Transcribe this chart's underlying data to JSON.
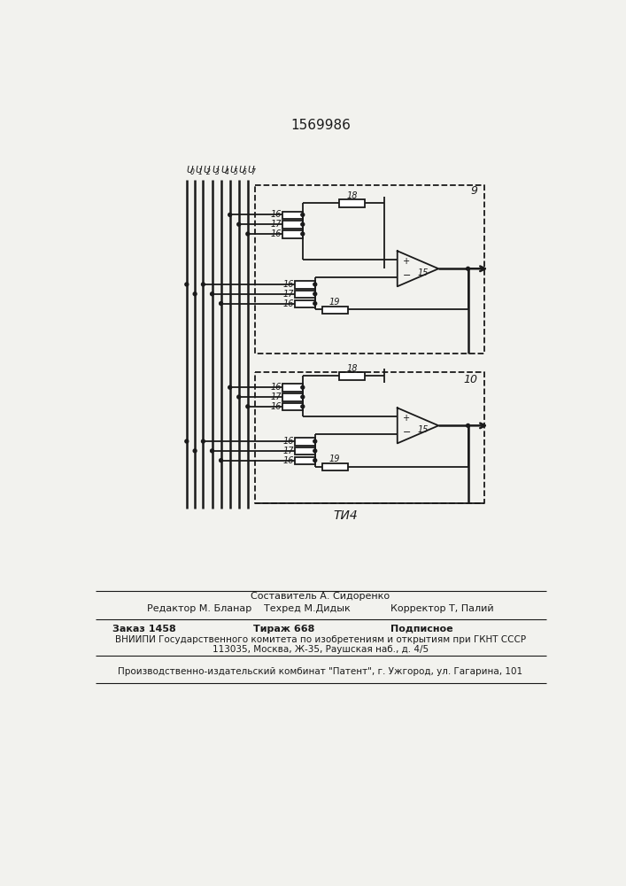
{
  "title": "1569986",
  "fig_label": "ΤИ4",
  "background_color": "#f2f2ee",
  "text_color": "#1a1a1a",
  "input_labels_base": [
    "U",
    "U",
    "U",
    "U",
    "U",
    "U",
    "U",
    "U"
  ],
  "input_labels_sub": [
    "0",
    "1",
    "2",
    "3",
    "4",
    "5",
    "6",
    "7"
  ],
  "block9_label": "9",
  "block10_label": "10",
  "opamp_label": "15",
  "footer_line1": "Составитель А. Сидоренко",
  "footer_line2_left": "Редактор М. Бланар",
  "footer_line2_mid": "Техред М.Дидык",
  "footer_line2_right": "Корректор Т, Палий",
  "footer_order": "Заказ 1458",
  "footer_tirazh": "Тираж 668",
  "footer_podp": "Подписное",
  "footer_vniip": "ВНИИПИ Государственного комитета по изобретениям и открытиям при ГКНТ СССР",
  "footer_addr": "113035, Москва, Ж-35, Раушская наб., д. 4/5",
  "footer_patent": "Производственно-издательский комбинат \"Патент\", г. Ужгород, ул. Гагарина, 101"
}
